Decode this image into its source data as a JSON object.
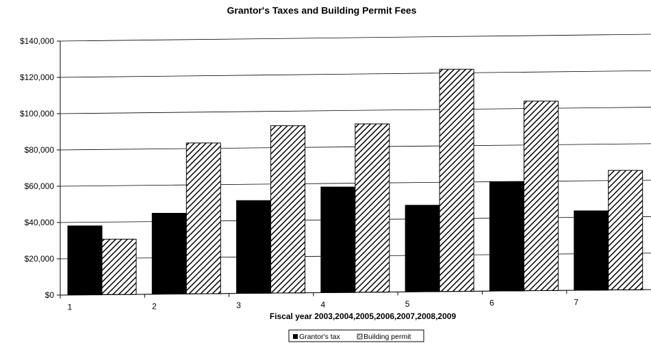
{
  "chart_data": {
    "type": "bar",
    "title": "Grantor's Taxes and Building Permit Fees",
    "xlabel": "Fiscal year 2003,2004,2005,2006,2007,2008,2009",
    "ylabel": "",
    "categories": [
      "1",
      "2",
      "3",
      "4",
      "5",
      "6",
      "7"
    ],
    "series": [
      {
        "name": "Grantor's tax",
        "values": [
          38000,
          44500,
          51000,
          58000,
          47500,
          60000,
          43500
        ],
        "color": "#000000",
        "fill": "solid"
      },
      {
        "name": "Building permit",
        "values": [
          30500,
          83000,
          92000,
          92500,
          122000,
          104000,
          65500
        ],
        "color": "#000000",
        "fill": "diagonal-hatch"
      }
    ],
    "ylim": [
      0,
      140000
    ],
    "yticks": [
      "$0",
      "$20,000",
      "$40,000",
      "$60,000",
      "$80,000",
      "$100,000",
      "$120,000",
      "$140,000"
    ],
    "grid": true,
    "legend_placement": "bottom-center"
  }
}
